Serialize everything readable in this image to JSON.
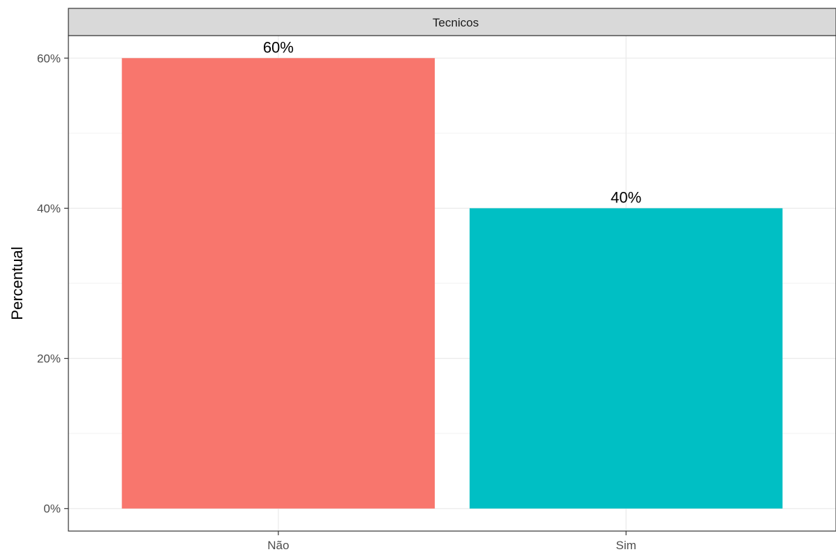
{
  "chart_data": {
    "type": "bar",
    "facet_label": "Tecnicos",
    "categories": [
      "Não",
      "Sim"
    ],
    "values": [
      60,
      40
    ],
    "value_labels": [
      "60%",
      "40%"
    ],
    "colors": [
      "#F8766D",
      "#00BFC4"
    ],
    "ylabel": "Percentual",
    "xlabel": "",
    "ylim": [
      -3,
      63
    ],
    "yticks": [
      0,
      20,
      40,
      60
    ],
    "ytick_labels": [
      "0%",
      "20%",
      "40%",
      "60%"
    ],
    "y_minor_ticks": [
      10,
      30,
      50
    ],
    "grid": true,
    "legend": "none"
  }
}
